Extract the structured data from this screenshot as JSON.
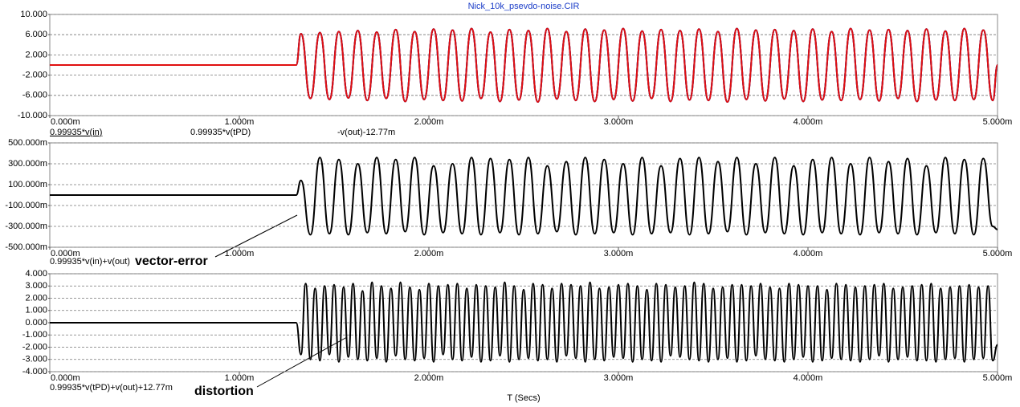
{
  "chart_data": [
    {
      "type": "line",
      "title": "Nick_10k_psevdo-noise.CIR",
      "x": [
        0,
        0.0013,
        0.001325,
        0.001375,
        0.001425,
        0.001475,
        0.001525,
        0.001575,
        0.001625,
        0.001675,
        0.001725,
        0.001775,
        0.001825,
        0.001875,
        0.001925,
        0.001975,
        0.002025,
        0.002075,
        0.002125,
        0.002175,
        0.002225,
        0.002275,
        0.002325,
        0.002375,
        0.002425,
        0.002475,
        0.002525,
        0.002575,
        0.002625,
        0.002675,
        0.002725,
        0.002775,
        0.002825,
        0.002875,
        0.002925,
        0.002975,
        0.003025,
        0.003075,
        0.003125,
        0.003175,
        0.003225,
        0.003275,
        0.003325,
        0.003375,
        0.003425,
        0.003475,
        0.003525,
        0.003575,
        0.003625,
        0.003675,
        0.003725,
        0.003775,
        0.003825,
        0.003875,
        0.003925,
        0.003975,
        0.004025,
        0.004075,
        0.004125,
        0.004175,
        0.004225,
        0.004275,
        0.004325,
        0.004375,
        0.004425,
        0.004475,
        0.004525,
        0.004575,
        0.004625,
        0.004675,
        0.004725,
        0.004775,
        0.004825,
        0.004875,
        0.004925,
        0.004975,
        0.005
      ],
      "series": [
        {
          "name": "0.99935*v(in)",
          "color": "#000000",
          "values": [
            0,
            0,
            6.2,
            -6.6,
            6.4,
            -6.8,
            6.6,
            -6.5,
            6.8,
            -7.0,
            6.5,
            -6.6,
            7.0,
            -7.2,
            6.6,
            -6.8,
            7.1,
            -7.0,
            6.9,
            -7.1,
            7.2,
            -6.6,
            6.5,
            -7.2,
            7.0,
            -6.9,
            6.8,
            -7.3,
            7.2,
            -6.7,
            6.6,
            -7.0,
            7.1,
            -7.2,
            6.9,
            -6.8,
            7.2,
            -7.1,
            6.7,
            -6.6,
            7.0,
            -7.2,
            6.8,
            -6.9,
            7.1,
            -7.0,
            6.6,
            -7.3,
            7.2,
            -6.8,
            6.9,
            -7.1,
            7.0,
            -6.7,
            6.8,
            -7.2,
            7.1,
            -6.9,
            6.6,
            -7.0,
            7.2,
            -6.8,
            6.9,
            -7.1,
            7.0,
            -6.6,
            6.8,
            -7.2,
            7.1,
            -6.9,
            6.7,
            -7.0,
            7.2,
            -6.8,
            6.9,
            -7.0,
            0
          ]
        },
        {
          "name": "0.99935*v(tPD)",
          "color": "#2020e0",
          "values": [
            0,
            0,
            6.2,
            -6.6,
            6.4,
            -6.8,
            6.6,
            -6.5,
            6.8,
            -7.0,
            6.5,
            -6.6,
            7.0,
            -7.2,
            6.6,
            -6.8,
            7.1,
            -7.0,
            6.9,
            -7.1,
            7.2,
            -6.6,
            6.5,
            -7.2,
            7.0,
            -6.9,
            6.8,
            -7.3,
            7.2,
            -6.7,
            6.6,
            -7.0,
            7.1,
            -7.2,
            6.9,
            -6.8,
            7.2,
            -7.1,
            6.7,
            -6.6,
            7.0,
            -7.2,
            6.8,
            -6.9,
            7.1,
            -7.0,
            6.6,
            -7.3,
            7.2,
            -6.8,
            6.9,
            -7.1,
            7.0,
            -6.7,
            6.8,
            -7.2,
            7.1,
            -6.9,
            6.6,
            -7.0,
            7.2,
            -6.8,
            6.9,
            -7.1,
            7.0,
            -6.6,
            6.8,
            -7.2,
            7.1,
            -6.9,
            6.7,
            -7.0,
            7.2,
            -6.8,
            6.9,
            -7.0,
            0
          ]
        },
        {
          "name": "-v(out)-12.77m",
          "color": "#e01010",
          "values": [
            0,
            0,
            6.2,
            -6.6,
            6.4,
            -6.8,
            6.6,
            -6.5,
            6.8,
            -7.0,
            6.5,
            -6.6,
            7.0,
            -7.2,
            6.6,
            -6.8,
            7.1,
            -7.0,
            6.9,
            -7.1,
            7.2,
            -6.6,
            6.5,
            -7.2,
            7.0,
            -6.9,
            6.8,
            -7.3,
            7.2,
            -6.7,
            6.6,
            -7.0,
            7.1,
            -7.2,
            6.9,
            -6.8,
            7.2,
            -7.1,
            6.7,
            -6.6,
            7.0,
            -7.2,
            6.8,
            -6.9,
            7.1,
            -7.0,
            6.6,
            -7.3,
            7.2,
            -6.8,
            6.9,
            -7.1,
            7.0,
            -6.7,
            6.8,
            -7.2,
            7.1,
            -6.9,
            6.6,
            -7.0,
            7.2,
            -6.8,
            6.9,
            -7.1,
            7.0,
            -6.6,
            6.8,
            -7.2,
            7.1,
            -6.9,
            6.7,
            -7.0,
            7.2,
            -6.8,
            6.9,
            -7.0,
            0
          ]
        }
      ],
      "xlim": [
        0,
        0.005
      ],
      "xticks": [
        {
          "value": 0,
          "label": "0.000m"
        },
        {
          "value": 0.001,
          "label": "1.000m"
        },
        {
          "value": 0.002,
          "label": "2.000m"
        },
        {
          "value": 0.003,
          "label": "3.000m"
        },
        {
          "value": 0.004,
          "label": "4.000m"
        },
        {
          "value": 0.005,
          "label": "5.000m"
        }
      ],
      "ylim": [
        -10,
        10
      ],
      "yticks": [
        {
          "value": 10,
          "label": "10.000"
        },
        {
          "value": 6,
          "label": "6.000"
        },
        {
          "value": 2,
          "label": "2.000"
        },
        {
          "value": -2,
          "label": "-2.000"
        },
        {
          "value": -6,
          "label": "-6.000"
        },
        {
          "value": -10,
          "label": "-10.000"
        }
      ],
      "grid": true
    },
    {
      "type": "line",
      "annotation": "vector-error",
      "x": [
        0,
        0.0013,
        0.001325,
        0.001375,
        0.001425,
        0.001475,
        0.001525,
        0.001575,
        0.001625,
        0.001675,
        0.001725,
        0.001775,
        0.001825,
        0.001875,
        0.001925,
        0.001975,
        0.002025,
        0.002075,
        0.002125,
        0.002175,
        0.002225,
        0.002275,
        0.002325,
        0.002375,
        0.002425,
        0.002475,
        0.002525,
        0.002575,
        0.002625,
        0.002675,
        0.002725,
        0.002775,
        0.002825,
        0.002875,
        0.002925,
        0.002975,
        0.003025,
        0.003075,
        0.003125,
        0.003175,
        0.003225,
        0.003275,
        0.003325,
        0.003375,
        0.003425,
        0.003475,
        0.003525,
        0.003575,
        0.003625,
        0.003675,
        0.003725,
        0.003775,
        0.003825,
        0.003875,
        0.003925,
        0.003975,
        0.004025,
        0.004075,
        0.004125,
        0.004175,
        0.004225,
        0.004275,
        0.004325,
        0.004375,
        0.004425,
        0.004475,
        0.004525,
        0.004575,
        0.004625,
        0.004675,
        0.004725,
        0.004775,
        0.004825,
        0.004875,
        0.004925,
        0.004975,
        0.005
      ],
      "series": [
        {
          "name": "0.99935*v(in)+v(out)",
          "color": "#000000",
          "values": [
            0,
            0,
            0.14,
            -0.38,
            0.36,
            -0.37,
            0.34,
            -0.38,
            0.3,
            -0.36,
            0.36,
            -0.37,
            0.34,
            -0.35,
            0.36,
            -0.38,
            0.28,
            -0.36,
            0.3,
            -0.37,
            0.36,
            -0.38,
            0.35,
            -0.36,
            0.34,
            -0.38,
            0.36,
            -0.37,
            0.28,
            -0.35,
            0.32,
            -0.38,
            0.36,
            -0.37,
            0.34,
            -0.36,
            0.3,
            -0.38,
            0.36,
            -0.37,
            0.28,
            -0.36,
            0.35,
            -0.38,
            0.36,
            -0.37,
            0.32,
            -0.35,
            0.36,
            -0.38,
            0.3,
            -0.36,
            0.36,
            -0.37,
            0.28,
            -0.38,
            0.34,
            -0.36,
            0.36,
            -0.37,
            0.3,
            -0.38,
            0.36,
            -0.36,
            0.32,
            -0.37,
            0.35,
            -0.38,
            0.28,
            -0.36,
            0.36,
            -0.37,
            0.34,
            -0.38,
            0.35,
            -0.3,
            -0.33
          ]
        }
      ],
      "xlim": [
        0,
        0.005
      ],
      "xticks": [
        {
          "value": 0,
          "label": "0.000m"
        },
        {
          "value": 0.001,
          "label": "1.000m"
        },
        {
          "value": 0.002,
          "label": "2.000m"
        },
        {
          "value": 0.003,
          "label": "3.000m"
        },
        {
          "value": 0.004,
          "label": "4.000m"
        },
        {
          "value": 0.005,
          "label": "5.000m"
        }
      ],
      "ylim": [
        -0.5,
        0.5
      ],
      "yticks": [
        {
          "value": 0.5,
          "label": "500.000m"
        },
        {
          "value": 0.3,
          "label": "300.000m"
        },
        {
          "value": 0.1,
          "label": "100.000m"
        },
        {
          "value": -0.1,
          "label": "-100.000m"
        },
        {
          "value": -0.3,
          "label": "-300.000m"
        },
        {
          "value": -0.5,
          "label": "-500.000m"
        }
      ],
      "grid": true
    },
    {
      "type": "line",
      "annotation": "distortion",
      "xlabel": "T (Secs)",
      "x": [
        0,
        0.0013,
        0.001325,
        0.00135,
        0.001375,
        0.0014,
        0.001425,
        0.00145,
        0.001475,
        0.0015,
        0.001525,
        0.00155,
        0.001575,
        0.0016,
        0.001625,
        0.00165,
        0.001675,
        0.0017,
        0.001725,
        0.00175,
        0.001775,
        0.0018,
        0.001825,
        0.00185,
        0.001875,
        0.0019,
        0.001925,
        0.00195,
        0.001975,
        0.002,
        0.002025,
        0.00205,
        0.002075,
        0.0021,
        0.002125,
        0.00215,
        0.002175,
        0.0022,
        0.002225,
        0.00225,
        0.002275,
        0.0023,
        0.002325,
        0.00235,
        0.002375,
        0.0024,
        0.002425,
        0.00245,
        0.002475,
        0.0025,
        0.002525,
        0.00255,
        0.002575,
        0.0026,
        0.002625,
        0.00265,
        0.002675,
        0.0027,
        0.002725,
        0.00275,
        0.002775,
        0.0028,
        0.002825,
        0.00285,
        0.002875,
        0.0029,
        0.002925,
        0.00295,
        0.002975,
        0.003,
        0.003025,
        0.00305,
        0.003075,
        0.0031,
        0.003125,
        0.00315,
        0.003175,
        0.0032,
        0.003225,
        0.00325,
        0.003275,
        0.0033,
        0.003325,
        0.00335,
        0.003375,
        0.0034,
        0.003425,
        0.00345,
        0.003475,
        0.0035,
        0.003525,
        0.00355,
        0.003575,
        0.0036,
        0.003625,
        0.00365,
        0.003675,
        0.0037,
        0.003725,
        0.00375,
        0.003775,
        0.0038,
        0.003825,
        0.00385,
        0.003875,
        0.0039,
        0.003925,
        0.00395,
        0.003975,
        0.004,
        0.004025,
        0.00405,
        0.004075,
        0.0041,
        0.004125,
        0.00415,
        0.004175,
        0.0042,
        0.004225,
        0.00425,
        0.004275,
        0.0043,
        0.004325,
        0.00435,
        0.004375,
        0.0044,
        0.004425,
        0.00445,
        0.004475,
        0.0045,
        0.004525,
        0.00455,
        0.004575,
        0.0046,
        0.004625,
        0.00465,
        0.004675,
        0.0047,
        0.004725,
        0.00475,
        0.004775,
        0.0048,
        0.004825,
        0.00485,
        0.004875,
        0.0049,
        0.004925,
        0.00495,
        0.004975,
        0.005
      ],
      "series": [
        {
          "name": "0.99935*v(tPD)+v(out)+12.77m",
          "color": "#000000",
          "values": [
            0,
            0,
            -2.6,
            3.2,
            -3.0,
            2.8,
            -3.1,
            3.0,
            -2.6,
            3.1,
            -3.2,
            2.9,
            -2.8,
            3.2,
            -3.0,
            2.6,
            -3.1,
            3.3,
            -2.9,
            3.0,
            -3.2,
            2.8,
            -2.7,
            3.3,
            -3.0,
            2.9,
            -3.1,
            2.7,
            -2.9,
            3.2,
            -3.2,
            3.0,
            -2.6,
            3.1,
            -3.0,
            3.2,
            -3.1,
            2.8,
            -2.8,
            3.1,
            -3.2,
            3.0,
            -3.1,
            2.9,
            -2.7,
            3.3,
            -3.2,
            3.0,
            -3.0,
            2.7,
            -2.9,
            3.2,
            -3.1,
            3.1,
            -3.0,
            2.8,
            -3.2,
            3.2,
            -2.7,
            3.1,
            -2.9,
            3.0,
            -3.2,
            3.3,
            -3.0,
            2.8,
            -3.1,
            2.9,
            -2.8,
            3.1,
            -2.9,
            3.2,
            -3.2,
            3.0,
            -3.0,
            2.7,
            -3.1,
            3.2,
            -3.2,
            3.1,
            -2.7,
            2.9,
            -2.8,
            3.0,
            -3.0,
            3.3,
            -3.1,
            3.2,
            -3.2,
            2.8,
            -3.0,
            2.9,
            -2.9,
            3.1,
            -3.2,
            3.1,
            -3.1,
            3.0,
            -2.7,
            3.2,
            -3.0,
            2.9,
            -3.1,
            2.8,
            -3.2,
            3.2,
            -3.0,
            3.1,
            -2.8,
            3.0,
            -3.2,
            3.0,
            -3.1,
            2.7,
            -2.9,
            3.2,
            -3.0,
            3.1,
            -3.1,
            2.9,
            -3.2,
            3.0,
            -3.0,
            3.1,
            -2.7,
            3.2,
            -3.2,
            2.8,
            -3.0,
            2.9,
            -2.8,
            3.0,
            -3.1,
            3.1,
            -3.1,
            3.2,
            -3.2,
            2.8,
            -3.0,
            2.9,
            -2.9,
            3.0,
            -3.2,
            3.1,
            -3.0,
            2.9,
            -2.9,
            3.0,
            -3.1,
            -1.8
          ]
        }
      ],
      "xlim": [
        0,
        0.005
      ],
      "xticks": [
        {
          "value": 0,
          "label": "0.000m"
        },
        {
          "value": 0.001,
          "label": "1.000m"
        },
        {
          "value": 0.002,
          "label": "2.000m"
        },
        {
          "value": 0.003,
          "label": "3.000m"
        },
        {
          "value": 0.004,
          "label": "4.000m"
        },
        {
          "value": 0.005,
          "label": "5.000m"
        }
      ],
      "ylim": [
        -4,
        4
      ],
      "yticks": [
        {
          "value": 4,
          "label": "4.000"
        },
        {
          "value": 3,
          "label": "3.000"
        },
        {
          "value": 2,
          "label": "2.000"
        },
        {
          "value": 1,
          "label": "1.000"
        },
        {
          "value": 0,
          "label": "0.000"
        },
        {
          "value": -1,
          "label": "-1.000"
        },
        {
          "value": -2,
          "label": "-2.000"
        },
        {
          "value": -3,
          "label": "-3.000"
        },
        {
          "value": -4,
          "label": "-4.000"
        }
      ],
      "grid": true
    }
  ]
}
